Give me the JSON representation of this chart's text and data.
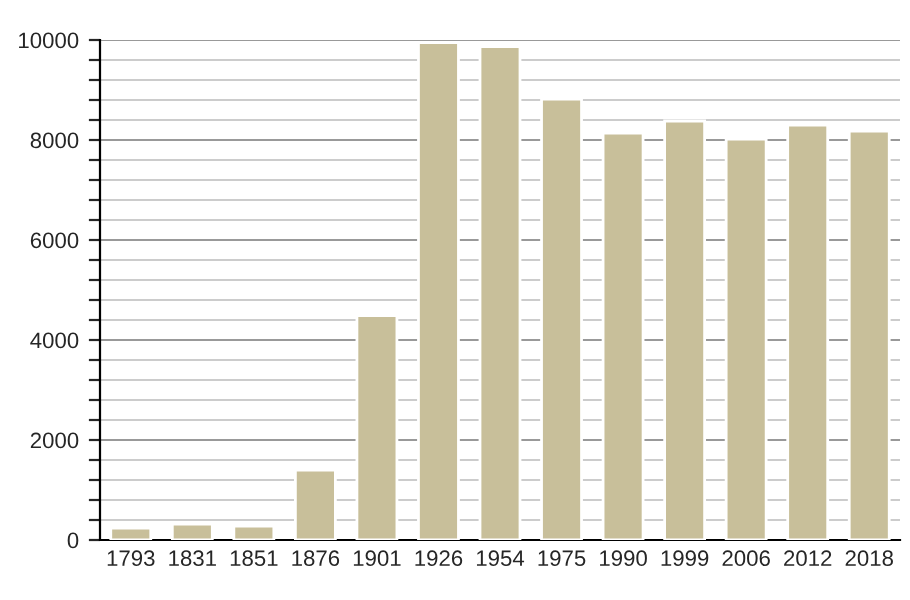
{
  "chart_data": {
    "type": "bar",
    "categories": [
      "1793",
      "1831",
      "1851",
      "1876",
      "1901",
      "1926",
      "1954",
      "1975",
      "1990",
      "1999",
      "2006",
      "2012",
      "2018"
    ],
    "values": [
      240,
      320,
      280,
      1400,
      4490,
      9950,
      9870,
      8820,
      8140,
      8380,
      8020,
      8300,
      8180
    ],
    "color": "#c8bf9a",
    "ylim": [
      0,
      10000
    ],
    "yticks": [
      0,
      {
        "value": 400,
        "label": null
      },
      {
        "value": 800,
        "label": null
      },
      {
        "value": 1200,
        "label": null
      },
      {
        "value": 1600,
        "label": null
      },
      2000,
      {
        "value": 2400,
        "label": null
      },
      {
        "value": 2800,
        "label": null
      },
      {
        "value": 3200,
        "label": null
      },
      {
        "value": 3600,
        "label": null
      },
      4000,
      {
        "value": 4400,
        "label": null
      },
      {
        "value": 4800,
        "label": null
      },
      {
        "value": 5200,
        "label": null
      },
      {
        "value": 5600,
        "label": null
      },
      6000,
      {
        "value": 6400,
        "label": null
      },
      {
        "value": 6800,
        "label": null
      },
      {
        "value": 7200,
        "label": null
      },
      {
        "value": 7600,
        "label": null
      },
      8000,
      {
        "value": 8400,
        "label": null
      },
      {
        "value": 8800,
        "label": null
      },
      {
        "value": 9200,
        "label": null
      },
      {
        "value": 9600,
        "label": null
      },
      10000
    ],
    "grid": "y"
  }
}
